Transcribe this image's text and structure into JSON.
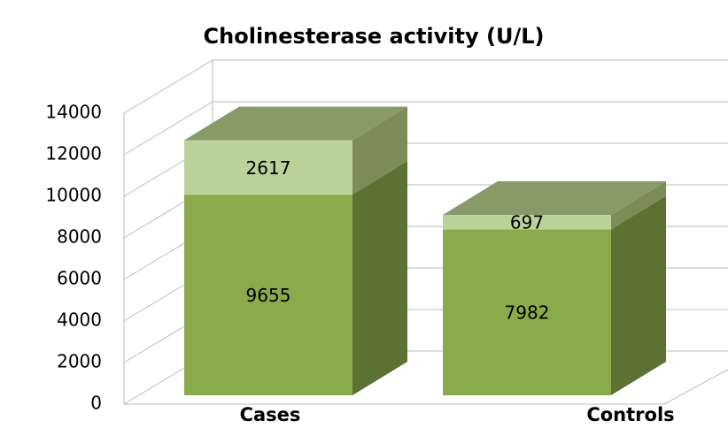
{
  "chart_data": {
    "type": "bar3d_stacked",
    "title": "Cholinesterase activity (U/L)",
    "categories": [
      "Cases",
      "Controls"
    ],
    "series": [
      {
        "color": "#8aab4c",
        "side_color": "#5b7233",
        "values": [
          9655,
          7982
        ]
      },
      {
        "color": "#b9d39a",
        "side_color": "#7b8c57",
        "top_color": "#889a68",
        "values": [
          2617,
          697
        ]
      }
    ],
    "ylim": [
      0,
      14000
    ],
    "yticks": [
      0,
      2000,
      4000,
      6000,
      8000,
      10000,
      12000,
      14000
    ],
    "grid": true
  }
}
